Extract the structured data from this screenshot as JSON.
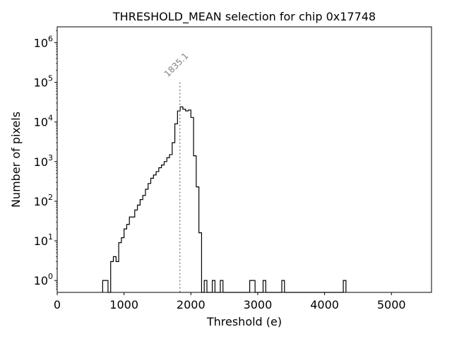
{
  "chart_data": {
    "type": "histogram",
    "title": "THRESHOLD_MEAN selection for chip 0x17748",
    "xlabel": "Threshold (e)",
    "ylabel": "Number of pixels",
    "xlim": [
      0,
      5600
    ],
    "ylim_log10": [
      -0.3,
      6.4
    ],
    "yscale": "log",
    "x_ticks": [
      0,
      1000,
      2000,
      3000,
      4000,
      5000
    ],
    "x_tick_labels": [
      "0",
      "1000",
      "2000",
      "3000",
      "4000",
      "5000"
    ],
    "y_ticks_exp": [
      0,
      1,
      2,
      3,
      4,
      5,
      6
    ],
    "y_tick_base": "10",
    "y_tick_exps": [
      "0",
      "1",
      "2",
      "3",
      "4",
      "5",
      "6"
    ],
    "bin_width": 40,
    "bins": [
      {
        "x": 680,
        "count": 1
      },
      {
        "x": 720,
        "count": 1
      },
      {
        "x": 800,
        "count": 3
      },
      {
        "x": 840,
        "count": 4
      },
      {
        "x": 880,
        "count": 3
      },
      {
        "x": 920,
        "count": 9
      },
      {
        "x": 960,
        "count": 12
      },
      {
        "x": 1000,
        "count": 20
      },
      {
        "x": 1040,
        "count": 26
      },
      {
        "x": 1080,
        "count": 40
      },
      {
        "x": 1120,
        "count": 40
      },
      {
        "x": 1160,
        "count": 60
      },
      {
        "x": 1200,
        "count": 80
      },
      {
        "x": 1240,
        "count": 110
      },
      {
        "x": 1280,
        "count": 140
      },
      {
        "x": 1320,
        "count": 200
      },
      {
        "x": 1360,
        "count": 280
      },
      {
        "x": 1400,
        "count": 380
      },
      {
        "x": 1440,
        "count": 460
      },
      {
        "x": 1480,
        "count": 560
      },
      {
        "x": 1520,
        "count": 700
      },
      {
        "x": 1560,
        "count": 820
      },
      {
        "x": 1600,
        "count": 1000
      },
      {
        "x": 1640,
        "count": 1250
      },
      {
        "x": 1680,
        "count": 1500
      },
      {
        "x": 1720,
        "count": 3000
      },
      {
        "x": 1760,
        "count": 9000
      },
      {
        "x": 1800,
        "count": 19000
      },
      {
        "x": 1840,
        "count": 24000
      },
      {
        "x": 1880,
        "count": 21000
      },
      {
        "x": 1920,
        "count": 19000
      },
      {
        "x": 1960,
        "count": 20000
      },
      {
        "x": 2000,
        "count": 13000
      },
      {
        "x": 2040,
        "count": 1400
      },
      {
        "x": 2080,
        "count": 230
      },
      {
        "x": 2120,
        "count": 16
      },
      {
        "x": 2200,
        "count": 1
      },
      {
        "x": 2260,
        "count": 1
      },
      {
        "x": 2320,
        "count": 1
      },
      {
        "x": 2440,
        "count": 1
      },
      {
        "x": 2880,
        "count": 1
      },
      {
        "x": 2920,
        "count": 1
      },
      {
        "x": 3080,
        "count": 1
      },
      {
        "x": 3360,
        "count": 1
      },
      {
        "x": 4280,
        "count": 1
      }
    ],
    "vline": {
      "x": 1835.1,
      "label": "1835.1",
      "ymax": 100000
    }
  },
  "colors": {
    "line": "#000000",
    "vline": "#7f7f7f",
    "background": "#ffffff"
  }
}
